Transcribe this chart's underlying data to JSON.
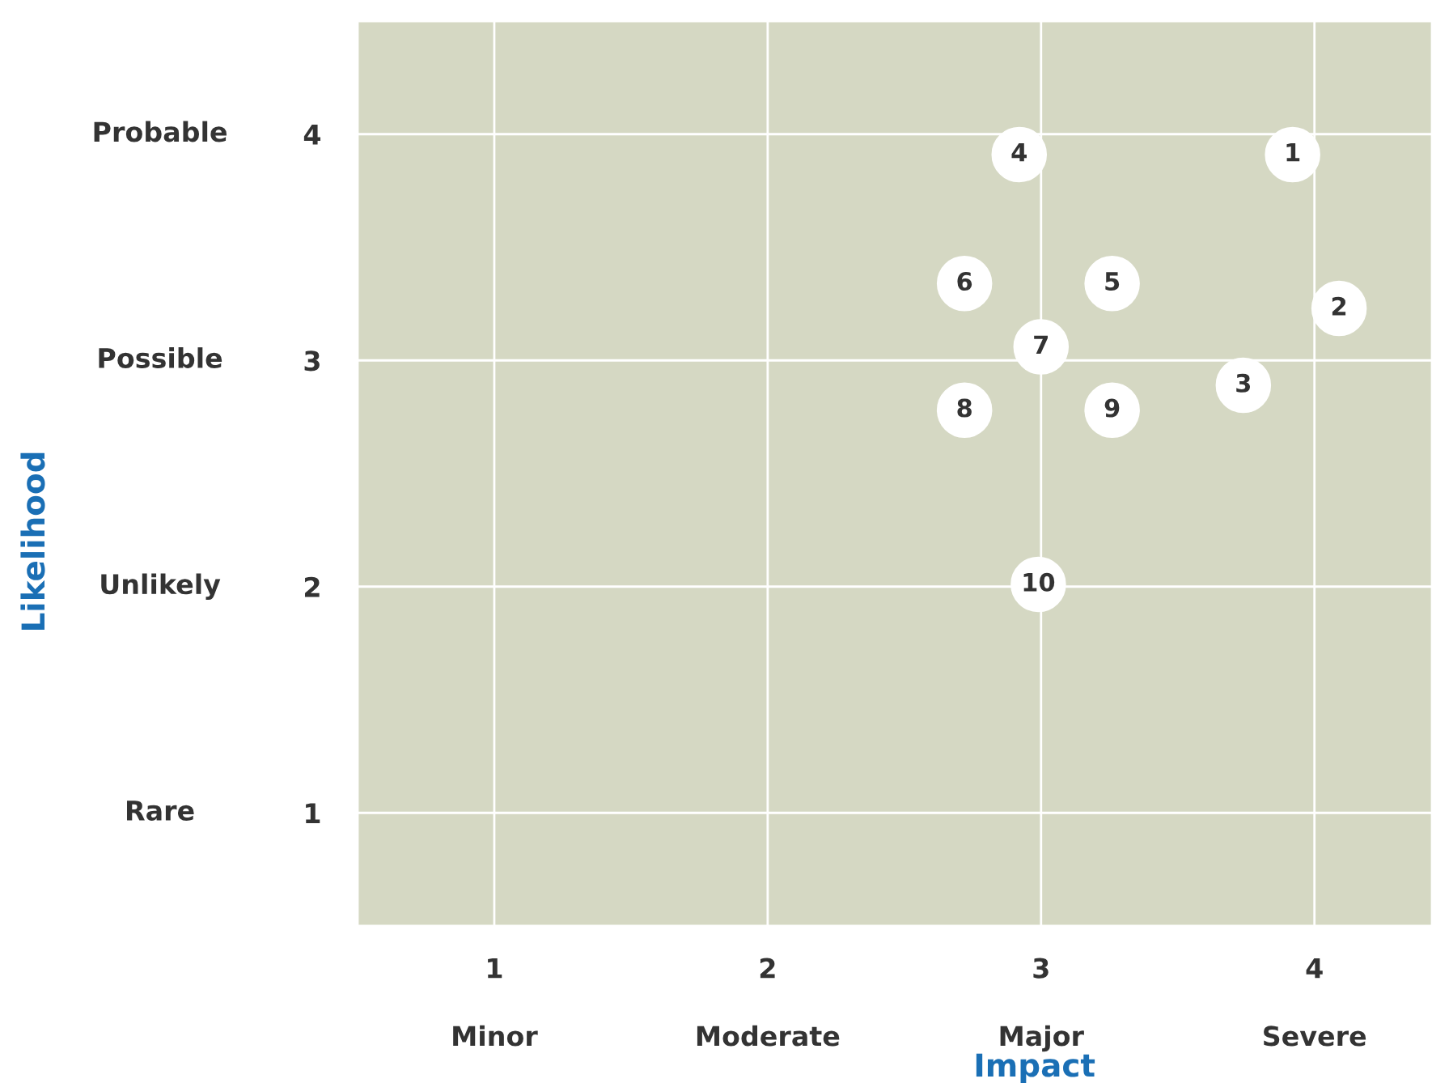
{
  "chart_data": {
    "type": "scatter",
    "xlabel": "Impact",
    "x": [
      3.92,
      4.09,
      3.74,
      2.92,
      3.26,
      2.72,
      3.0,
      2.72,
      3.26,
      2.99
    ],
    "series": [
      {
        "color": "#ffffff",
        "values": [
          3.91,
          3.23,
          2.89,
          3.91,
          3.34,
          3.34,
          3.06,
          2.78,
          2.78,
          2.01
        ]
      }
    ],
    "annotations": [
      {
        "text": "1",
        "x": 3.92,
        "y": 3.91
      },
      {
        "text": "2",
        "x": 4.09,
        "y": 3.23
      },
      {
        "text": "3",
        "x": 3.74,
        "y": 2.89
      },
      {
        "text": "4",
        "x": 2.92,
        "y": 3.91
      },
      {
        "text": "5",
        "x": 3.26,
        "y": 3.34
      },
      {
        "text": "6",
        "x": 2.72,
        "y": 3.34
      },
      {
        "text": "7",
        "x": 3.0,
        "y": 3.06
      },
      {
        "text": "8",
        "x": 2.72,
        "y": 2.78
      },
      {
        "text": "9",
        "x": 3.26,
        "y": 2.78
      },
      {
        "text": "10",
        "x": 2.99,
        "y": 2.01
      },
      "Minor",
      "Moderate",
      "Major",
      "Severe",
      "Rare",
      "Unlikely",
      "Possible",
      "Probable",
      "Likelihood"
    ],
    "xlim": [
      0.5,
      4.43
    ],
    "ylim": [
      0.5,
      4.5
    ],
    "xticks": [
      1,
      2,
      3,
      4
    ],
    "yticks": [
      1,
      2,
      3,
      4
    ],
    "grid": true,
    "marker": "circle",
    "legend": false
  }
}
